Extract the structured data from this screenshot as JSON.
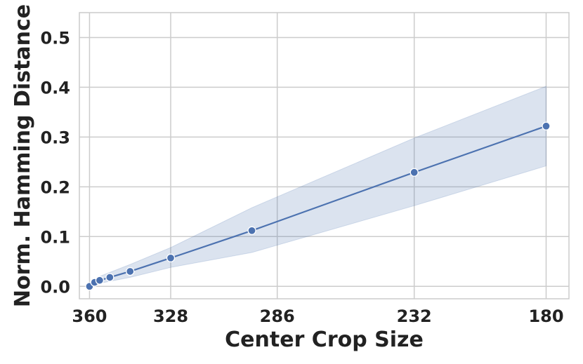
{
  "chart_data": {
    "type": "line",
    "title": "",
    "xlabel": "Center Crop Size",
    "ylabel": "Norm. Hamming Distance",
    "x_reversed": true,
    "xlim": [
      364,
      171
    ],
    "ylim": [
      -0.025,
      0.55
    ],
    "xticks": [
      360,
      328,
      286,
      232,
      180
    ],
    "xtick_labels": [
      "360",
      "328",
      "286",
      "232",
      "180"
    ],
    "yticks": [
      0.0,
      0.1,
      0.2,
      0.3,
      0.4,
      0.5
    ],
    "ytick_labels": [
      "0.0",
      "0.1",
      "0.2",
      "0.3",
      "0.4",
      "0.5"
    ],
    "grid": true,
    "series": [
      {
        "x": [
          360,
          358,
          356,
          352,
          344,
          328,
          296,
          232,
          180
        ],
        "y": [
          0.0,
          0.008,
          0.012,
          0.018,
          0.03,
          0.057,
          0.112,
          0.229,
          0.322
        ],
        "lower": [
          0.0,
          0.004,
          0.006,
          0.01,
          0.018,
          0.038,
          0.068,
          0.162,
          0.242
        ],
        "upper": [
          0.0,
          0.014,
          0.02,
          0.028,
          0.044,
          0.078,
          0.158,
          0.298,
          0.402
        ]
      }
    ],
    "colors": {
      "line": "#4c72b0",
      "band": "#4c72b0",
      "grid": "#cccccc",
      "axes_edge": "#cccccc"
    }
  }
}
